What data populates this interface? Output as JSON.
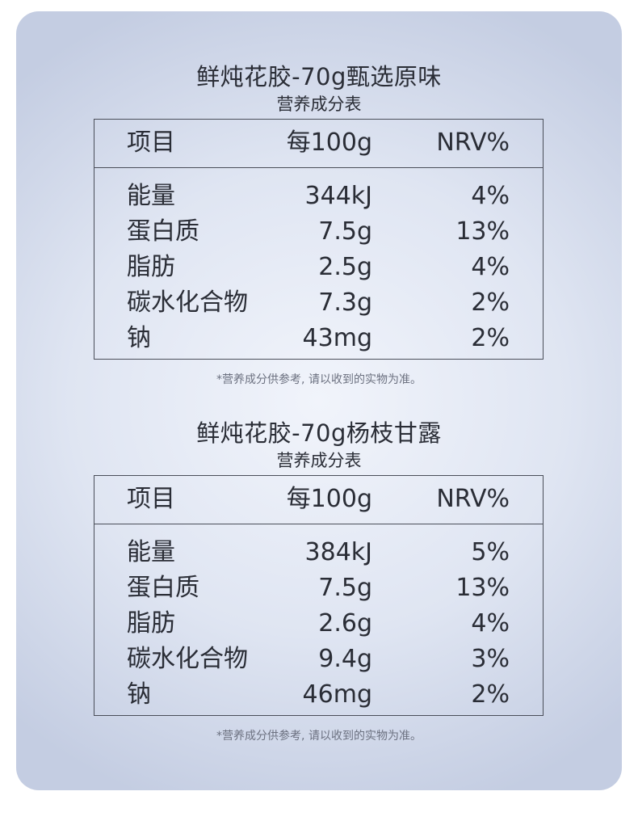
{
  "sections": [
    {
      "product_title": "鲜炖花胶-70g甄选原味",
      "subtitle": "营养成分表",
      "headers": [
        "项目",
        "每100g",
        "NRV%"
      ],
      "rows": [
        {
          "name": "能量",
          "per100g": "344kJ",
          "nrv": "4%"
        },
        {
          "name": "蛋白质",
          "per100g": "7.5g",
          "nrv": "13%"
        },
        {
          "name": "脂肪",
          "per100g": "2.5g",
          "nrv": "4%"
        },
        {
          "name": "碳水化合物",
          "per100g": "7.3g",
          "nrv": "2%"
        },
        {
          "name": "钠",
          "per100g": "43mg",
          "nrv": "2%"
        }
      ],
      "note": "*营养成分供参考, 请以收到的实物为准。"
    },
    {
      "product_title": "鲜炖花胶-70g杨枝甘露",
      "subtitle": "营养成分表",
      "headers": [
        "项目",
        "每100g",
        "NRV%"
      ],
      "rows": [
        {
          "name": "能量",
          "per100g": "384kJ",
          "nrv": "5%"
        },
        {
          "name": "蛋白质",
          "per100g": "7.5g",
          "nrv": "13%"
        },
        {
          "name": "脂肪",
          "per100g": "2.6g",
          "nrv": "4%"
        },
        {
          "name": "碳水化合物",
          "per100g": "9.4g",
          "nrv": "3%"
        },
        {
          "name": "钠",
          "per100g": "46mg",
          "nrv": "2%"
        }
      ],
      "note": "*营养成分供参考, 请以收到的实物为准。"
    }
  ]
}
